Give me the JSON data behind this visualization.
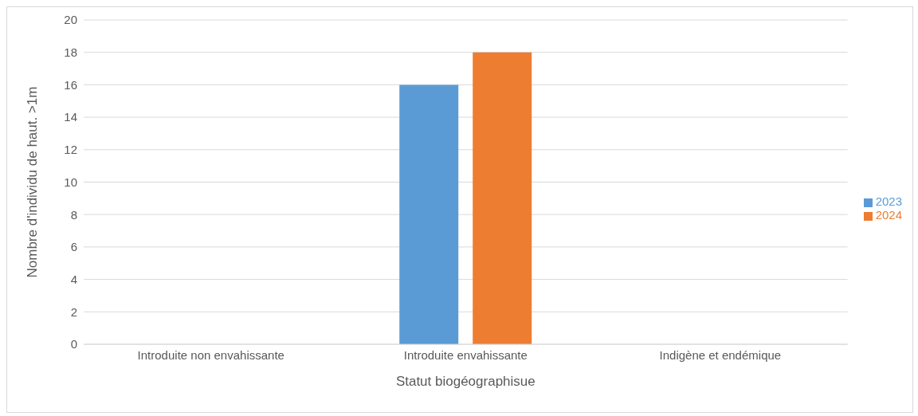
{
  "chart_data": {
    "type": "bar",
    "xlabel": "Statut biogéographisue",
    "ylabel": "Nombre d'individu de haut. >1m",
    "categories": [
      "Introduite non envahissante",
      "Introduite envahissante",
      "Indigène et endémique"
    ],
    "series": [
      {
        "name": "2023",
        "color": "#5b9bd5",
        "values": [
          0,
          16,
          0
        ]
      },
      {
        "name": "2024",
        "color": "#ed7d31",
        "values": [
          0,
          18,
          0
        ]
      }
    ],
    "ylim": [
      0,
      20
    ],
    "yticks": [
      0,
      2,
      4,
      6,
      8,
      10,
      12,
      14,
      16,
      18,
      20
    ],
    "grid": "y",
    "legend": "right"
  }
}
